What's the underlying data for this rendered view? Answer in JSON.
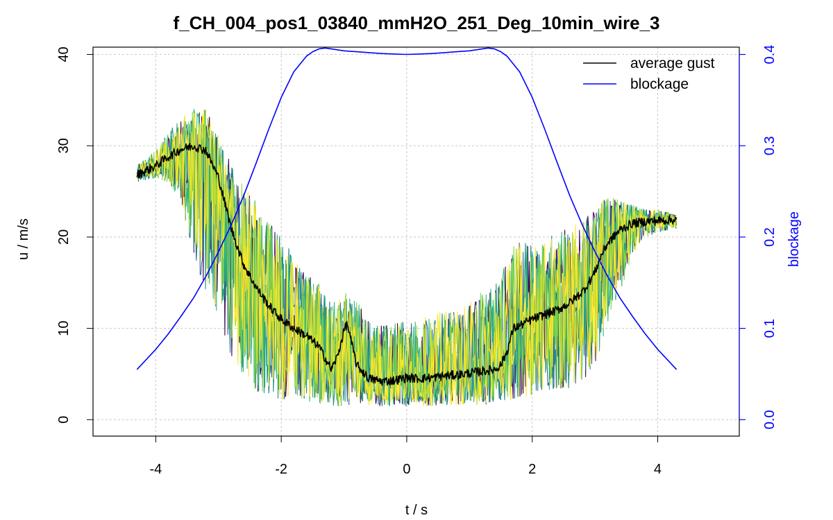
{
  "chart_data": {
    "type": "line",
    "title": "f_CH_004_pos1_03840_mmH2O_251_Deg_10min_wire_3",
    "xlabel": "t / s",
    "ylabel": "u / m/s",
    "y2label": "blockage",
    "xlim": [
      -5,
      5.3
    ],
    "ylim": [
      -1.8,
      40.8
    ],
    "y2lim": [
      -0.018,
      0.408
    ],
    "x_ticks": [
      -4,
      -2,
      0,
      2,
      4
    ],
    "x_tick_labels": [
      "-4",
      "-2",
      "0",
      "2",
      "4"
    ],
    "y_ticks": [
      0,
      10,
      20,
      30,
      40
    ],
    "y_tick_labels": [
      "0",
      "10",
      "20",
      "30",
      "40"
    ],
    "y2_ticks": [
      0.0,
      0.1,
      0.2,
      0.3,
      0.4
    ],
    "y2_tick_labels": [
      "0.0",
      "0.1",
      "0.2",
      "0.3",
      "0.4"
    ],
    "grid": true,
    "legend_position": "top-right",
    "colors": {
      "average_gust": "#000000",
      "blockage": "#0000ff",
      "right_axis": "#0000ff",
      "grid": "#c8c8c8",
      "realizations": [
        "#440154",
        "#31688e",
        "#21918c",
        "#35b779",
        "#90d743",
        "#fde725"
      ]
    },
    "series": [
      {
        "name": "average gust",
        "axis": "left",
        "x": [
          -4.3,
          -4.0,
          -3.8,
          -3.6,
          -3.4,
          -3.2,
          -3.0,
          -2.8,
          -2.6,
          -2.4,
          -2.2,
          -2.0,
          -1.8,
          -1.6,
          -1.4,
          -1.2,
          -1.1,
          -1.0,
          -0.95,
          -0.9,
          -0.8,
          -0.6,
          -0.4,
          -0.2,
          0.0,
          0.2,
          0.4,
          0.6,
          0.8,
          1.0,
          1.2,
          1.4,
          1.5,
          1.6,
          1.7,
          1.8,
          2.0,
          2.2,
          2.4,
          2.6,
          2.8,
          2.9,
          3.0,
          3.1,
          3.2,
          3.4,
          3.6,
          3.8,
          4.0,
          4.3
        ],
        "values": [
          26.8,
          27.8,
          28.8,
          29.6,
          30.0,
          29.5,
          26.5,
          21.0,
          17.0,
          14.5,
          12.5,
          11.0,
          10.0,
          9.2,
          8.0,
          5.5,
          7.0,
          9.8,
          10.5,
          9.0,
          6.0,
          4.5,
          4.2,
          4.3,
          4.6,
          4.5,
          4.6,
          4.8,
          4.9,
          5.1,
          5.3,
          5.5,
          6.0,
          7.5,
          10.0,
          10.3,
          11.0,
          11.5,
          12.0,
          12.8,
          14.0,
          15.0,
          16.2,
          18.0,
          19.3,
          20.8,
          21.5,
          21.7,
          21.8,
          21.9
        ]
      },
      {
        "name": "blockage",
        "axis": "right",
        "x": [
          -4.3,
          -4.0,
          -3.8,
          -3.6,
          -3.4,
          -3.2,
          -3.0,
          -2.8,
          -2.6,
          -2.4,
          -2.2,
          -2.0,
          -1.8,
          -1.6,
          -1.5,
          -1.4,
          -1.3,
          -1.2,
          -1.0,
          -0.8,
          -0.6,
          -0.4,
          -0.2,
          0.0,
          0.2,
          0.4,
          0.6,
          0.8,
          1.0,
          1.2,
          1.3,
          1.4,
          1.5,
          1.6,
          1.8,
          2.0,
          2.2,
          2.4,
          2.6,
          2.8,
          3.0,
          3.2,
          3.4,
          3.6,
          3.8,
          4.0,
          4.3
        ],
        "values": [
          0.055,
          0.077,
          0.094,
          0.113,
          0.133,
          0.157,
          0.184,
          0.213,
          0.245,
          0.281,
          0.318,
          0.353,
          0.381,
          0.398,
          0.403,
          0.406,
          0.407,
          0.406,
          0.404,
          0.403,
          0.402,
          0.401,
          0.4005,
          0.4,
          0.4005,
          0.401,
          0.402,
          0.403,
          0.404,
          0.406,
          0.407,
          0.406,
          0.403,
          0.398,
          0.381,
          0.353,
          0.318,
          0.281,
          0.245,
          0.213,
          0.184,
          0.157,
          0.133,
          0.113,
          0.094,
          0.077,
          0.055
        ]
      }
    ],
    "realization_envelope": {
      "x": [
        -4.3,
        -4.0,
        -3.8,
        -3.6,
        -3.4,
        -3.2,
        -3.0,
        -2.8,
        -2.6,
        -2.4,
        -2.2,
        -2.0,
        -1.8,
        -1.6,
        -1.4,
        -1.2,
        -1.0,
        -0.8,
        -0.6,
        -0.4,
        -0.2,
        0.0,
        0.2,
        0.4,
        0.6,
        0.8,
        1.0,
        1.2,
        1.4,
        1.6,
        1.8,
        2.0,
        2.2,
        2.4,
        2.6,
        2.8,
        3.0,
        3.2,
        3.4,
        3.6,
        3.8,
        4.0,
        4.3
      ],
      "lower": [
        26.0,
        26.5,
        26.0,
        24.0,
        18.0,
        14.0,
        11.0,
        7.0,
        4.0,
        3.0,
        2.5,
        2.0,
        2.0,
        2.0,
        1.8,
        1.5,
        1.5,
        1.5,
        1.5,
        1.5,
        1.5,
        1.5,
        1.5,
        1.5,
        1.5,
        1.5,
        1.5,
        1.5,
        2.0,
        2.0,
        2.5,
        2.5,
        3.0,
        3.0,
        3.5,
        4.0,
        6.0,
        10.0,
        14.0,
        18.0,
        20.0,
        20.5,
        21.0
      ],
      "upper": [
        27.8,
        29.5,
        31.5,
        33.0,
        34.0,
        34.0,
        31.0,
        28.0,
        26.0,
        24.0,
        22.0,
        20.0,
        18.0,
        16.0,
        15.0,
        13.0,
        14.0,
        13.0,
        11.0,
        10.5,
        10.5,
        11.0,
        11.0,
        11.5,
        12.0,
        12.5,
        13.0,
        14.0,
        15.0,
        18.0,
        20.0,
        19.0,
        20.0,
        20.5,
        21.0,
        22.0,
        23.0,
        24.5,
        24.0,
        23.5,
        23.0,
        23.0,
        22.5
      ]
    },
    "realization_count": 6
  }
}
